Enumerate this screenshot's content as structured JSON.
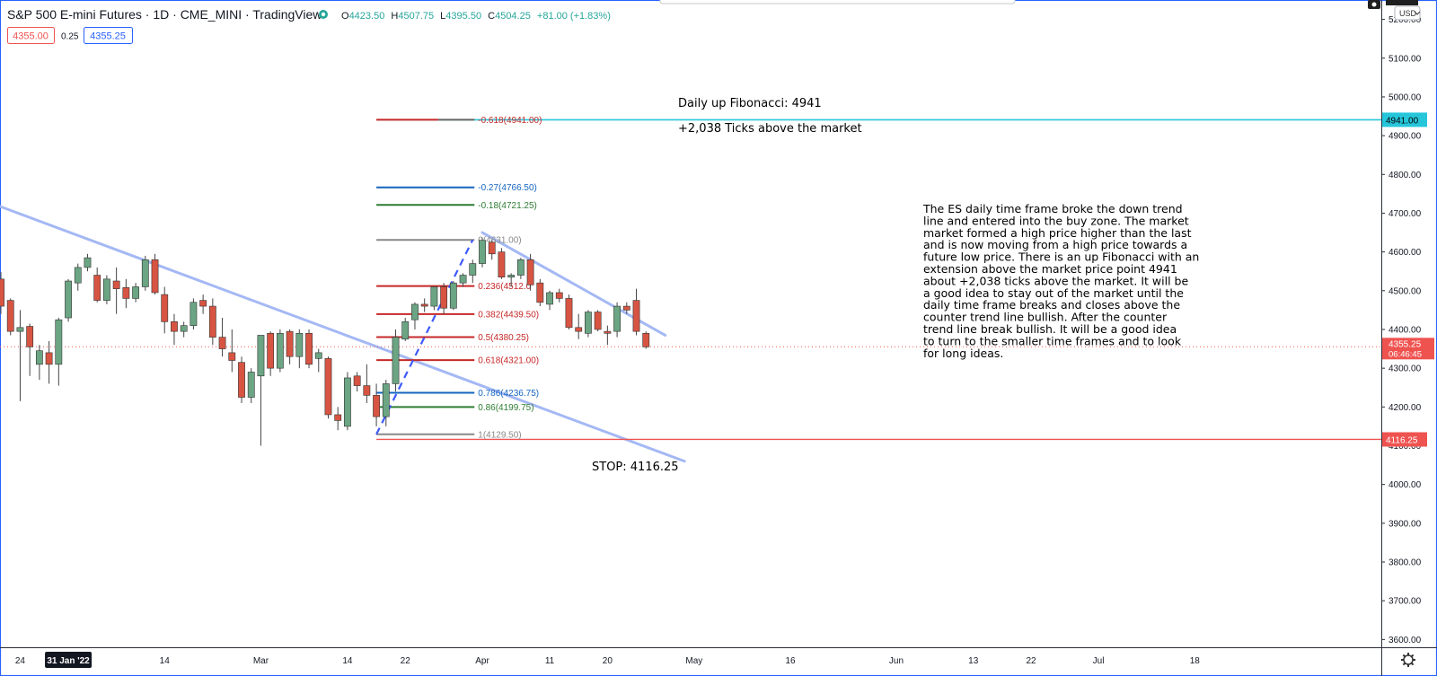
{
  "header": {
    "symbol": "S&P 500 E-mini Futures · 1D · CME_MINI · TradingView",
    "ohlc": {
      "open_label": "O",
      "open": "4423.50",
      "high_label": "H",
      "high": "4507.75",
      "low_label": "L",
      "low": "4395.50",
      "close_label": "C",
      "close": "4504.25",
      "change": "+81.00 (+1.83%)"
    },
    "bid": "4355.00",
    "spread": "0.25",
    "ask": "4355.25",
    "currency": "USD"
  },
  "colors": {
    "up": "#6ba583",
    "down": "#d75442",
    "trend": "#a4b8f4",
    "fib_red": "#c62828",
    "fib_blue": "#1565c0",
    "fib_green": "#2e7d32",
    "fib_gray": "#888888",
    "fib_ext": "#26c6da",
    "stop": "#ef5350"
  },
  "annotations": {
    "fib_title": "Daily up Fibonacci: 4941",
    "fib_sub": "+2,038 Ticks above the market",
    "stop_label": "STOP: 4116.25",
    "analysis": [
      "The ES daily time frame broke the down trend",
      "line and entered into the buy zone. The market",
      "market formed a high price higher than the last",
      "and is now moving from a high price towards a",
      "future low price. There is an up Fibonacci with an",
      "extension above the market price point 4941",
      "about +2,038 ticks above the market.  It will be",
      "a good idea to stay out of the market until the",
      "daily time frame breaks and closes above the",
      "counter trend line bullish. After the counter",
      "trend line break bullish. It will be a good idea",
      "to turn to the smaller time frames and to look",
      "for long ideas."
    ]
  },
  "chart_data": {
    "type": "candlestick",
    "ylim": [
      3580,
      5250
    ],
    "y_ticks": [
      {
        "v": 5200,
        "label": "5200.00"
      },
      {
        "v": 5100,
        "label": "5100.00"
      },
      {
        "v": 5000,
        "label": "5000.00"
      },
      {
        "v": 4900,
        "label": "4900.00"
      },
      {
        "v": 4800,
        "label": "4800.00"
      },
      {
        "v": 4700,
        "label": "4700.00"
      },
      {
        "v": 4600,
        "label": "4600.00"
      },
      {
        "v": 4500,
        "label": "4500.00"
      },
      {
        "v": 4400,
        "label": "4400.00"
      },
      {
        "v": 4300,
        "label": "4300.00"
      },
      {
        "v": 4200,
        "label": "4200.00"
      },
      {
        "v": 4100,
        "label": "4100.00"
      },
      {
        "v": 4000,
        "label": "4000.00"
      },
      {
        "v": 3900,
        "label": "3900.00"
      },
      {
        "v": 3800,
        "label": "3800.00"
      },
      {
        "v": 3700,
        "label": "3700.00"
      },
      {
        "v": 3600,
        "label": "3600.00"
      }
    ],
    "x_ticks": [
      {
        "i": 2,
        "label": "24"
      },
      {
        "i": 7,
        "label": "31 Jan '22",
        "highlight": true
      },
      {
        "i": 17,
        "label": "14"
      },
      {
        "i": 27,
        "label": "Mar"
      },
      {
        "i": 36,
        "label": "14"
      },
      {
        "i": 42,
        "label": "22"
      },
      {
        "i": 50,
        "label": "Apr"
      },
      {
        "i": 57,
        "label": "11"
      },
      {
        "i": 63,
        "label": "20"
      },
      {
        "i": 72,
        "label": "May"
      },
      {
        "i": 82,
        "label": "16"
      },
      {
        "i": 93,
        "label": "Jun"
      },
      {
        "i": 101,
        "label": "13"
      },
      {
        "i": 107,
        "label": "22"
      },
      {
        "i": 114,
        "label": "Jul"
      },
      {
        "i": 124,
        "label": "18"
      }
    ],
    "candles": [
      [
        4530,
        4548,
        4440,
        4460
      ],
      [
        4475,
        4480,
        4385,
        4395
      ],
      [
        4395,
        4450,
        4215,
        4405
      ],
      [
        4408,
        4415,
        4280,
        4355
      ],
      [
        4310,
        4360,
        4270,
        4345
      ],
      [
        4340,
        4370,
        4260,
        4310
      ],
      [
        4310,
        4430,
        4255,
        4425
      ],
      [
        4430,
        4530,
        4420,
        4525
      ],
      [
        4520,
        4570,
        4500,
        4560
      ],
      [
        4560,
        4595,
        4550,
        4585
      ],
      [
        4540,
        4560,
        4470,
        4475
      ],
      [
        4475,
        4540,
        4465,
        4530
      ],
      [
        4525,
        4560,
        4440,
        4505
      ],
      [
        4508,
        4530,
        4455,
        4480
      ],
      [
        4480,
        4520,
        4470,
        4510
      ],
      [
        4510,
        4590,
        4500,
        4580
      ],
      [
        4580,
        4595,
        4490,
        4495
      ],
      [
        4490,
        4510,
        4390,
        4420
      ],
      [
        4420,
        4440,
        4360,
        4395
      ],
      [
        4395,
        4420,
        4380,
        4410
      ],
      [
        4410,
        4480,
        4400,
        4470
      ],
      [
        4475,
        4490,
        4440,
        4460
      ],
      [
        4460,
        4480,
        4360,
        4380
      ],
      [
        4380,
        4430,
        4330,
        4350
      ],
      [
        4340,
        4400,
        4290,
        4320
      ],
      [
        4315,
        4330,
        4210,
        4225
      ],
      [
        4225,
        4300,
        4210,
        4290
      ],
      [
        4280,
        4380,
        4100,
        4385
      ],
      [
        4390,
        4395,
        4280,
        4300
      ],
      [
        4300,
        4400,
        4290,
        4390
      ],
      [
        4395,
        4400,
        4310,
        4330
      ],
      [
        4330,
        4400,
        4300,
        4390
      ],
      [
        4390,
        4400,
        4300,
        4310
      ],
      [
        4325,
        4350,
        4290,
        4340
      ],
      [
        4325,
        4330,
        4170,
        4180
      ],
      [
        4180,
        4200,
        4140,
        4165
      ],
      [
        4150,
        4290,
        4140,
        4275
      ],
      [
        4280,
        4290,
        4240,
        4255
      ],
      [
        4255,
        4310,
        4210,
        4230
      ],
      [
        4230,
        4260,
        4150,
        4175
      ],
      [
        4175,
        4270,
        4150,
        4260
      ],
      [
        4260,
        4400,
        4240,
        4380
      ],
      [
        4375,
        4430,
        4370,
        4420
      ],
      [
        4425,
        4470,
        4400,
        4465
      ],
      [
        4465,
        4480,
        4445,
        4460
      ],
      [
        4460,
        4510,
        4450,
        4510
      ],
      [
        4510,
        4520,
        4440,
        4455
      ],
      [
        4455,
        4525,
        4450,
        4520
      ],
      [
        4520,
        4545,
        4510,
        4540
      ],
      [
        4540,
        4580,
        4520,
        4570
      ],
      [
        4570,
        4637,
        4560,
        4630
      ],
      [
        4625,
        4630,
        4580,
        4595
      ],
      [
        4600,
        4610,
        4530,
        4535
      ],
      [
        4535,
        4545,
        4510,
        4540
      ],
      [
        4540,
        4585,
        4530,
        4580
      ],
      [
        4580,
        4595,
        4500,
        4515
      ],
      [
        4520,
        4530,
        4460,
        4470
      ],
      [
        4465,
        4500,
        4450,
        4495
      ],
      [
        4495,
        4505,
        4470,
        4480
      ],
      [
        4480,
        4490,
        4400,
        4405
      ],
      [
        4405,
        4440,
        4375,
        4395
      ],
      [
        4390,
        4450,
        4380,
        4445
      ],
      [
        4445,
        4450,
        4395,
        4400
      ],
      [
        4395,
        4410,
        4360,
        4390
      ],
      [
        4395,
        4470,
        4380,
        4460
      ],
      [
        4460,
        4470,
        4440,
        4450
      ],
      [
        4475,
        4505,
        4385,
        4395
      ],
      [
        4390,
        4395,
        4350,
        4355
      ]
    ],
    "current_price": {
      "value": 4355.25,
      "label": "4355.25",
      "countdown": "06:46:45"
    },
    "fib_levels": [
      {
        "level": "-0.618",
        "value": 4941.0,
        "label": "-0.618(4941.00)",
        "color": "#c62828"
      },
      {
        "level": "-0.27",
        "value": 4766.5,
        "label": "-0.27(4766.50)",
        "color": "#1565c0"
      },
      {
        "level": "-0.18",
        "value": 4721.25,
        "label": "-0.18(4721.25)",
        "color": "#2e7d32"
      },
      {
        "level": "0",
        "value": 4631.0,
        "label": "0(4631.00)",
        "color": "#888888"
      },
      {
        "level": "0.236",
        "value": 4512.0,
        "label": "0.236(4512.0",
        "color": "#c62828"
      },
      {
        "level": "0.382",
        "value": 4439.5,
        "label": "0.382(4439.50)",
        "color": "#c62828"
      },
      {
        "level": "0.5",
        "value": 4380.25,
        "label": "0.5(4380.25)",
        "color": "#c62828"
      },
      {
        "level": "0.618",
        "value": 4321.0,
        "label": "0.618(4321.00)",
        "color": "#c62828"
      },
      {
        "level": "0.786",
        "value": 4236.75,
        "label": "0.786(4236.75)",
        "color": "#1565c0"
      },
      {
        "level": "0.86",
        "value": 4199.75,
        "label": "0.86(4199.75)",
        "color": "#2e7d32"
      },
      {
        "level": "1",
        "value": 4129.5,
        "label": "1(4129.50)",
        "color": "#888888"
      }
    ],
    "target": {
      "value": 4941.0,
      "label": "4941.00"
    },
    "stop": {
      "value": 4116.25,
      "label": "4116.25"
    },
    "trendlines": [
      {
        "name": "main-downtrend",
        "from": [
          -2,
          4735
        ],
        "to": [
          71,
          4060
        ]
      },
      {
        "name": "counter-trendline",
        "from": [
          50,
          4650
        ],
        "to": [
          69,
          4385
        ]
      }
    ],
    "fib_swing": {
      "from": [
        39,
        4129.5
      ],
      "to": [
        49,
        4631
      ]
    }
  }
}
